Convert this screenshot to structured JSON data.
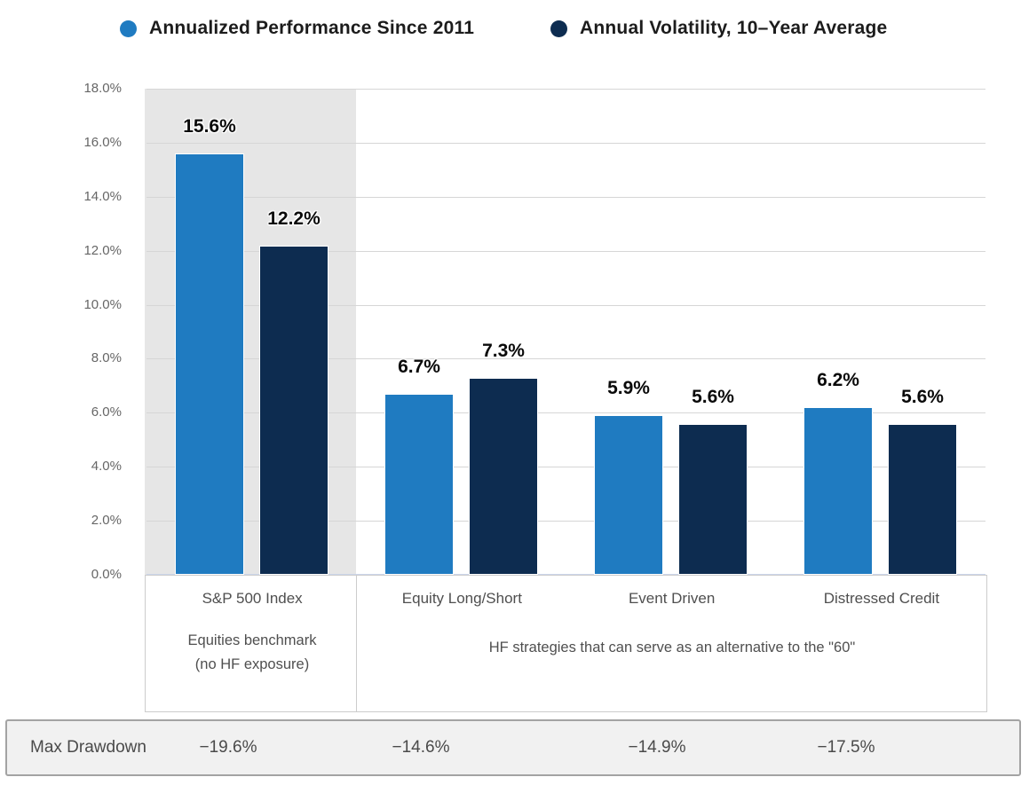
{
  "legend": {
    "items": [
      {
        "label": "Annualized Performance Since 2011",
        "color": "#1f7bc1"
      },
      {
        "label": "Annual Volatility, 10–Year Average",
        "color": "#0d2c50"
      }
    ]
  },
  "chart_data": {
    "type": "bar",
    "categories": [
      "S&P 500 Index",
      "Equity Long/Short",
      "Event Driven",
      "Distressed Credit"
    ],
    "series": [
      {
        "name": "Annualized Performance Since 2011",
        "color": "#1f7bc1",
        "values": [
          15.6,
          6.7,
          5.9,
          6.2
        ]
      },
      {
        "name": "Annual Volatility, 10–Year Average",
        "color": "#0d2c50",
        "values": [
          12.2,
          7.3,
          5.6,
          5.6
        ]
      }
    ],
    "data_labels": [
      [
        "15.6%",
        "6.7%",
        "5.9%",
        "6.2%"
      ],
      [
        "12.2%",
        "7.3%",
        "5.6%",
        "5.6%"
      ]
    ],
    "ylim": [
      0,
      18
    ],
    "yticks": [
      "18.0%",
      "16.0%",
      "14.0%",
      "12.0%",
      "10.0%",
      "8.0%",
      "6.0%",
      "4.0%",
      "2.0%",
      "0.0%"
    ],
    "grid": true,
    "legend_position": "top",
    "highlight_first_category": true,
    "colors": {
      "performance_blue": "#1f7bc1",
      "volatility_navy": "#0d2c50",
      "highlight_band": "#e6e6e6"
    },
    "annotations": {
      "first_category_note_line1": "Equities benchmark",
      "first_category_note_line2": "(no HF exposure)",
      "other_categories_note": "HF strategies that can serve as an alternative to the \"60\""
    },
    "drawdown_row": {
      "label": "Max Drawdown",
      "values": [
        "−19.6%",
        "−14.6%",
        "−14.9%",
        "−17.5%"
      ]
    }
  }
}
